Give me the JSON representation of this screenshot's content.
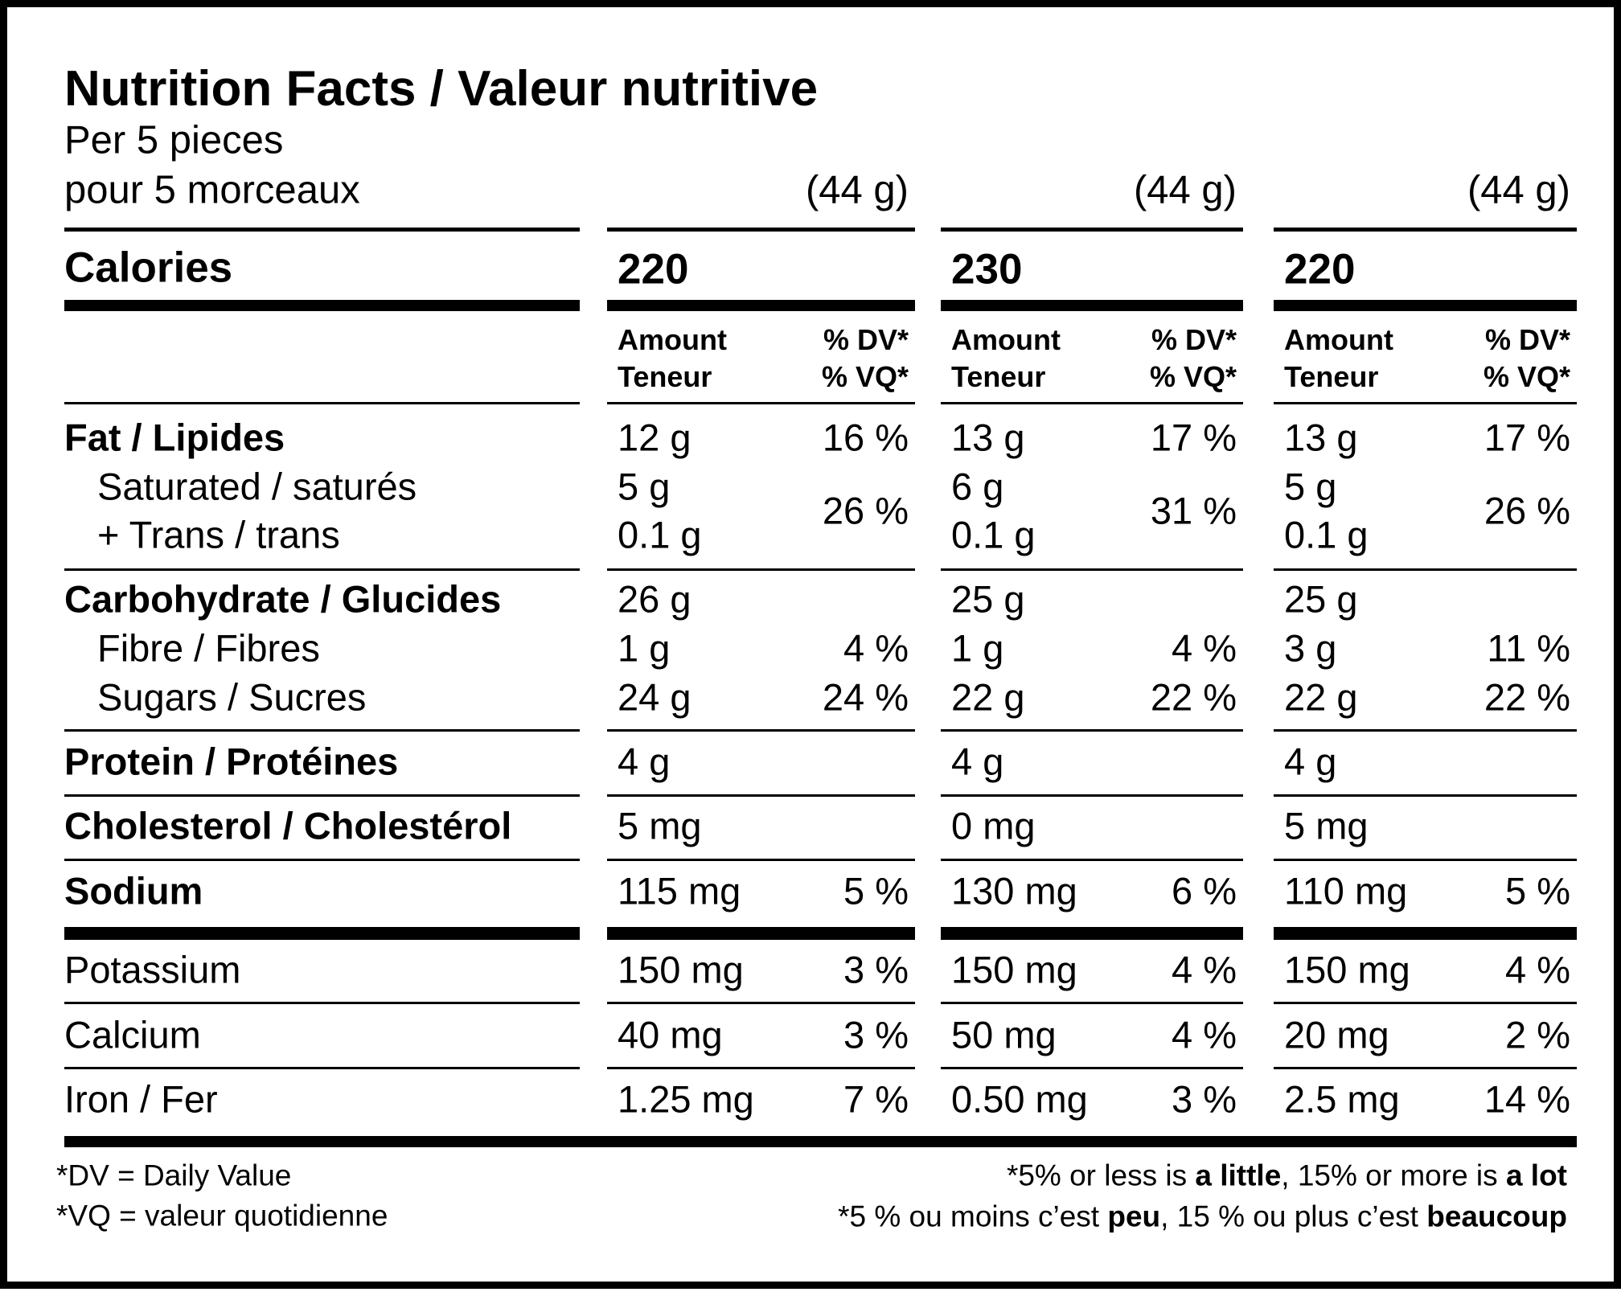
{
  "title": "Nutrition Facts / Valeur nutritive",
  "serving_line_1": "Per 5 pieces",
  "serving_line_2": "pour 5 morceaux",
  "calories_label": "Calories",
  "nutrient_labels": {
    "fat": "Fat / Lipides",
    "saturated": "Saturated / saturés",
    "trans": "+ Trans / trans",
    "carbohydrate": "Carbohydrate / Glucides",
    "fibre": "Fibre / Fibres",
    "sugars": "Sugars / Sucres",
    "protein": "Protein / Protéines",
    "cholesterol": "Cholesterol / Cholestérol",
    "sodium": "Sodium",
    "potassium": "Potassium",
    "calcium": "Calcium",
    "iron": "Iron / Fer"
  },
  "columns": [
    {
      "serving_size": "(44 g)",
      "calories": "220",
      "amount_header_1": "Amount",
      "amount_header_2": "Teneur",
      "dv_header_1": "% DV*",
      "dv_header_2": "% VQ*",
      "fat": "12 g",
      "fat_dv": "16 %",
      "saturated": "5 g",
      "trans": "0.1 g",
      "sat_trans_dv": "26 %",
      "carbohydrate": "26 g",
      "fibre": "1 g",
      "fibre_dv": "4 %",
      "sugars": "24 g",
      "sugars_dv": "24 %",
      "protein": "4 g",
      "cholesterol": "5 mg",
      "sodium": "115 mg",
      "sodium_dv": "5 %",
      "potassium": "150 mg",
      "potassium_dv": "3 %",
      "calcium": "40 mg",
      "calcium_dv": "3 %",
      "iron": "1.25 mg",
      "iron_dv": "7 %"
    },
    {
      "serving_size": "(44 g)",
      "calories": "230",
      "amount_header_1": "Amount",
      "amount_header_2": "Teneur",
      "dv_header_1": "% DV*",
      "dv_header_2": "% VQ*",
      "fat": "13 g",
      "fat_dv": "17 %",
      "saturated": "6 g",
      "trans": "0.1 g",
      "sat_trans_dv": "31 %",
      "carbohydrate": "25 g",
      "fibre": "1 g",
      "fibre_dv": "4 %",
      "sugars": "22 g",
      "sugars_dv": "22 %",
      "protein": "4 g",
      "cholesterol": "0 mg",
      "sodium": "130 mg",
      "sodium_dv": "6 %",
      "potassium": "150 mg",
      "potassium_dv": "4 %",
      "calcium": "50 mg",
      "calcium_dv": "4 %",
      "iron": "0.50 mg",
      "iron_dv": "3 %"
    },
    {
      "serving_size": "(44 g)",
      "calories": "220",
      "amount_header_1": "Amount",
      "amount_header_2": "Teneur",
      "dv_header_1": "% DV*",
      "dv_header_2": "% VQ*",
      "fat": "13 g",
      "fat_dv": "17 %",
      "saturated": "5 g",
      "trans": "0.1 g",
      "sat_trans_dv": "26 %",
      "carbohydrate": "25 g",
      "fibre": "3 g",
      "fibre_dv": "11 %",
      "sugars": "22 g",
      "sugars_dv": "22 %",
      "protein": "4 g",
      "cholesterol": "5 mg",
      "sodium": "110 mg",
      "sodium_dv": "5 %",
      "potassium": "150 mg",
      "potassium_dv": "4 %",
      "calcium": "20 mg",
      "calcium_dv": "2 %",
      "iron": "2.5 mg",
      "iron_dv": "14 %"
    }
  ],
  "footer": {
    "dv_definition": "*DV = Daily Value",
    "vq_definition": "*VQ = valeur quotidienne",
    "en_note": {
      "p1": "*5% or less is ",
      "b1": "a little",
      "p2": ", 15% or more is ",
      "b2": "a lot"
    },
    "fr_note": {
      "p1": "*5 % ou moins c’est ",
      "b1": "peu",
      "p2": ", 15 % ou plus c’est ",
      "b2": "beaucoup"
    }
  }
}
